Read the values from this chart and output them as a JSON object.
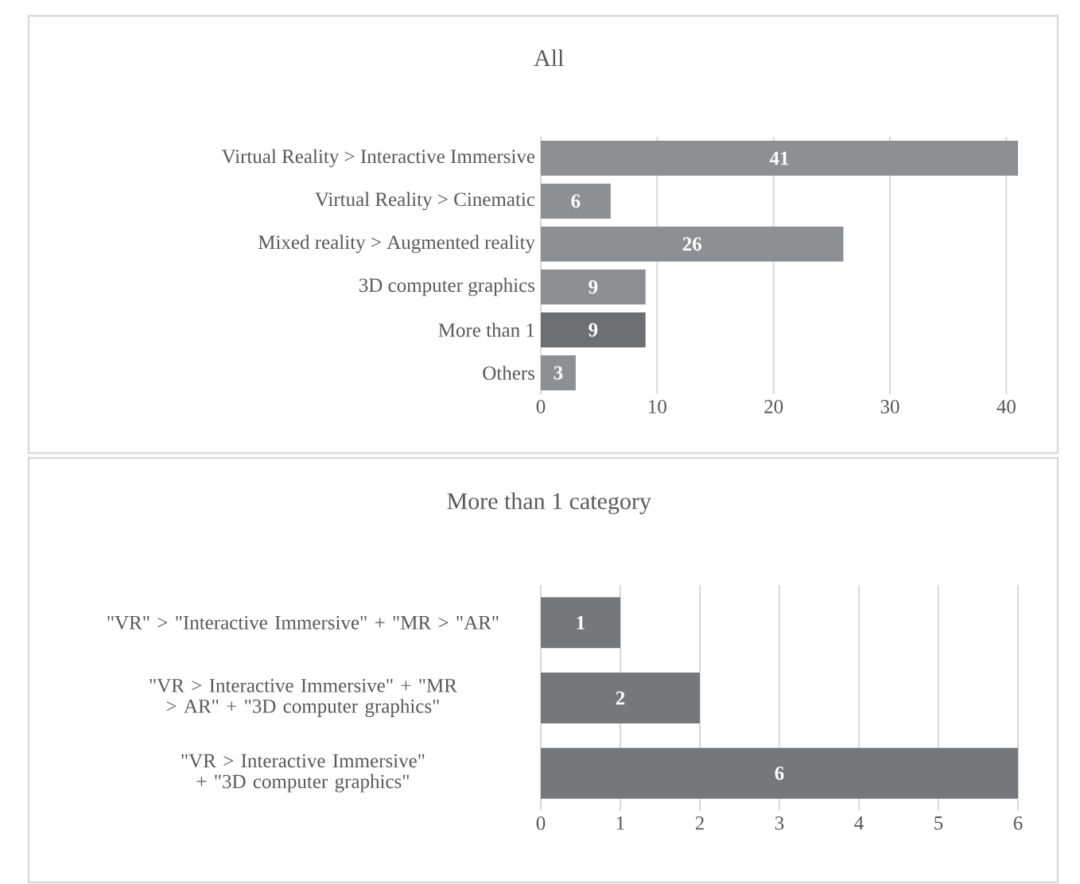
{
  "chart_data": [
    {
      "type": "bar",
      "orientation": "horizontal",
      "title": "All",
      "categories": [
        "Virtual Reality > Interactive Immersive",
        "Virtual Reality > Cinematic",
        "Mixed reality > Augmented reality",
        "3D computer graphics",
        "More than 1",
        "Others"
      ],
      "values": [
        41,
        6,
        26,
        9,
        9,
        3
      ],
      "colors": [
        "#8e8f93",
        "#8e8f93",
        "#8e8f93",
        "#8e8f93",
        "#6e6f73",
        "#8e8f93"
      ],
      "xlim": [
        0,
        41
      ],
      "xticks": [
        0,
        10,
        20,
        30,
        40
      ],
      "grid": "x",
      "data_labels": true
    },
    {
      "type": "bar",
      "orientation": "horizontal",
      "title": "More than 1 category",
      "categories": [
        "\"VR\" > \"Interactive Immersive\" + \"MR > \"AR\"",
        "\"VR > Interactive Immersive\" + \"MR > AR\" + \"3D computer graphics\"",
        "\"VR > Interactive Immersive\" + \"3D computer graphics\""
      ],
      "values": [
        1,
        2,
        6
      ],
      "colors": [
        "#76777b",
        "#76777b",
        "#76777b"
      ],
      "xlim": [
        0,
        6
      ],
      "xticks": [
        0,
        1,
        2,
        3,
        4,
        5,
        6
      ],
      "grid": "x",
      "data_labels": true
    }
  ]
}
